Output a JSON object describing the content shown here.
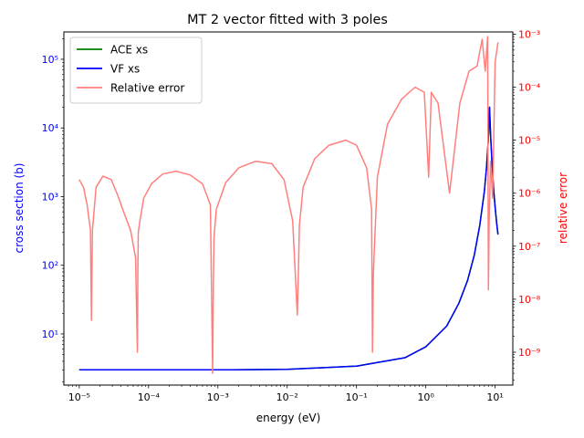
{
  "chart_data": {
    "type": "line",
    "title": "MT 2 vector fitted with 3 poles",
    "xlabel": "energy (eV)",
    "ylabel": "cross section (b)",
    "y2label": "relative error",
    "x_scale": "log",
    "y_scale": "log",
    "y2_scale": "log",
    "xlim": [
      6e-06,
      18
    ],
    "ylim": [
      1.8,
      250000
    ],
    "y2lim": [
      2.4e-10,
      0.0011
    ],
    "x_ticks": [
      {
        "value": 1e-05,
        "label": "10⁻⁵"
      },
      {
        "value": 0.0001,
        "label": "10⁻⁴"
      },
      {
        "value": 0.001,
        "label": "10⁻³"
      },
      {
        "value": 0.01,
        "label": "10⁻²"
      },
      {
        "value": 0.1,
        "label": "10⁻¹"
      },
      {
        "value": 1,
        "label": "10⁰"
      },
      {
        "value": 10,
        "label": "10¹"
      }
    ],
    "y_ticks": [
      {
        "value": 10,
        "label": "10¹"
      },
      {
        "value": 100,
        "label": "10²"
      },
      {
        "value": 1000,
        "label": "10³"
      },
      {
        "value": 10000,
        "label": "10⁴"
      },
      {
        "value": 100000,
        "label": "10⁵"
      }
    ],
    "y2_ticks": [
      {
        "value": 1e-09,
        "label": "10⁻⁹"
      },
      {
        "value": 1e-08,
        "label": "10⁻⁸"
      },
      {
        "value": 1e-07,
        "label": "10⁻⁷"
      },
      {
        "value": 1e-06,
        "label": "10⁻⁶"
      },
      {
        "value": 1e-05,
        "label": "10⁻⁵"
      },
      {
        "value": 0.0001,
        "label": "10⁻⁴"
      },
      {
        "value": 0.001,
        "label": "10⁻³"
      }
    ],
    "legend": {
      "position": "top-left"
    },
    "series": [
      {
        "name": "ACE xs",
        "color": "#008000",
        "axis": "left",
        "x": [
          1e-05,
          0.0001,
          0.001,
          0.01,
          0.1,
          0.5,
          1,
          2,
          3,
          4,
          5,
          6,
          7,
          7.5,
          8,
          8.3,
          8.6,
          9,
          9.5,
          10,
          10.5,
          11
        ],
        "y": [
          3.0,
          3.0,
          3.0,
          3.05,
          3.4,
          4.5,
          6.5,
          13,
          28,
          60,
          140,
          380,
          1200,
          2600,
          7000,
          20000,
          8000,
          3200,
          1300,
          700,
          420,
          280
        ]
      },
      {
        "name": "VF xs",
        "color": "#0000ff",
        "axis": "left",
        "x": [
          1e-05,
          0.0001,
          0.001,
          0.01,
          0.1,
          0.5,
          1,
          2,
          3,
          4,
          5,
          6,
          7,
          7.5,
          8,
          8.3,
          8.6,
          9,
          9.5,
          10,
          10.5,
          11
        ],
        "y": [
          3.0,
          3.0,
          3.0,
          3.05,
          3.4,
          4.5,
          6.5,
          13,
          28,
          60,
          140,
          380,
          1200,
          2600,
          7000,
          20000,
          8000,
          3200,
          1300,
          700,
          420,
          280
        ]
      },
      {
        "name": "Relative error",
        "color": "#ff7f7f",
        "axis": "right",
        "x": [
          1e-05,
          1.15e-05,
          1.3e-05,
          1.45e-05,
          1.5e-05,
          1.55e-05,
          1.75e-05,
          2.2e-05,
          2.9e-05,
          3.6e-05,
          4.5e-05,
          5.5e-05,
          6.5e-05,
          6.9e-05,
          7e-05,
          7.1e-05,
          7.5e-05,
          8.5e-05,
          0.00011,
          0.00016,
          0.00025,
          0.0004,
          0.0006,
          0.00078,
          0.00084,
          0.00086,
          0.00088,
          0.00095,
          0.0013,
          0.002,
          0.0035,
          0.006,
          0.009,
          0.012,
          0.014,
          0.0145,
          0.015,
          0.017,
          0.025,
          0.04,
          0.07,
          0.1,
          0.14,
          0.165,
          0.17,
          0.175,
          0.2,
          0.28,
          0.45,
          0.7,
          0.95,
          1.1,
          1.2,
          1.5,
          2.2,
          3.1,
          4.2,
          5.5,
          6.5,
          7.2,
          7.8,
          8.0,
          8.2,
          8.6,
          9.2,
          10.0,
          11.0
        ],
        "y": [
          1.8e-06,
          1.3e-06,
          6e-07,
          2e-07,
          4e-09,
          2e-07,
          1.3e-06,
          2.1e-06,
          1.8e-06,
          9e-07,
          4e-07,
          2e-07,
          6e-08,
          1e-09,
          3e-08,
          1.8e-07,
          3e-07,
          8e-07,
          1.5e-06,
          2.3e-06,
          2.6e-06,
          2.2e-06,
          1.5e-06,
          6e-07,
          4e-10,
          2e-08,
          1.5e-07,
          5e-07,
          1.6e-06,
          3e-06,
          4e-06,
          3.6e-06,
          1.8e-06,
          3e-07,
          5e-09,
          3e-08,
          2.5e-07,
          1.3e-06,
          4.5e-06,
          8e-06,
          1e-05,
          8e-06,
          3e-06,
          5e-07,
          1e-09,
          3e-08,
          2e-06,
          2e-05,
          6e-05,
          0.0001,
          8e-05,
          2e-06,
          8e-05,
          5e-05,
          1e-06,
          5e-05,
          0.0002,
          0.00025,
          0.0008,
          0.0002,
          0.0009,
          1.5e-08,
          3e-07,
          4e-06,
          8e-07,
          0.0003,
          0.0007
        ]
      }
    ]
  }
}
